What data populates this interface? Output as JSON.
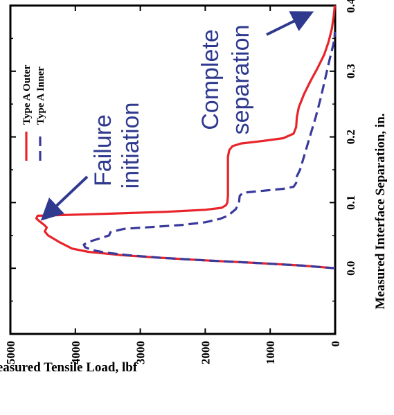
{
  "chart_data": {
    "type": "line",
    "orientation": "rotated-90-clockwise",
    "xlabel": "Measured Interface Separation, in.",
    "ylabel": "Measured Tensile Load, lbf",
    "xlim": [
      -0.1,
      0.4
    ],
    "ylim": [
      0,
      5000
    ],
    "x_ticks": [
      "0.0",
      "0.1",
      "0.2",
      "0.3",
      "0.4"
    ],
    "y_ticks": [
      "0",
      "1000",
      "2000",
      "3000",
      "4000",
      "5000"
    ],
    "x_tick_values": [
      0.0,
      0.1,
      0.2,
      0.3,
      0.4
    ],
    "y_tick_values": [
      0,
      1000,
      2000,
      3000,
      4000,
      5000
    ],
    "grid": false,
    "legend_position": "top-left",
    "series": [
      {
        "name": "Type A Outer",
        "color": "#e8242a",
        "style": "solid",
        "points": [
          [
            0.0,
            0
          ],
          [
            0.004,
            500
          ],
          [
            0.008,
            1200
          ],
          [
            0.012,
            2000
          ],
          [
            0.016,
            2700
          ],
          [
            0.02,
            3300
          ],
          [
            0.025,
            3800
          ],
          [
            0.03,
            4050
          ],
          [
            0.04,
            4250
          ],
          [
            0.05,
            4420
          ],
          [
            0.056,
            4470
          ],
          [
            0.062,
            4440
          ],
          [
            0.066,
            4480
          ],
          [
            0.072,
            4560
          ],
          [
            0.076,
            4600
          ],
          [
            0.08,
            4580
          ],
          [
            0.083,
            3500
          ],
          [
            0.086,
            2600
          ],
          [
            0.089,
            2000
          ],
          [
            0.092,
            1750
          ],
          [
            0.096,
            1680
          ],
          [
            0.1,
            1660
          ],
          [
            0.11,
            1650
          ],
          [
            0.125,
            1650
          ],
          [
            0.14,
            1650
          ],
          [
            0.155,
            1650
          ],
          [
            0.17,
            1650
          ],
          [
            0.18,
            1630
          ],
          [
            0.186,
            1580
          ],
          [
            0.19,
            1450
          ],
          [
            0.194,
            1100
          ],
          [
            0.198,
            800
          ],
          [
            0.205,
            640
          ],
          [
            0.215,
            600
          ],
          [
            0.23,
            590
          ],
          [
            0.245,
            560
          ],
          [
            0.265,
            480
          ],
          [
            0.285,
            380
          ],
          [
            0.305,
            270
          ],
          [
            0.325,
            170
          ],
          [
            0.345,
            100
          ],
          [
            0.365,
            50
          ],
          [
            0.385,
            20
          ],
          [
            0.4,
            5
          ]
        ]
      },
      {
        "name": "Type A Inner",
        "color": "#3a3a9c",
        "style": "dashed",
        "points": [
          [
            0.0,
            0
          ],
          [
            0.004,
            500
          ],
          [
            0.008,
            1200
          ],
          [
            0.012,
            2000
          ],
          [
            0.016,
            2700
          ],
          [
            0.02,
            3200
          ],
          [
            0.024,
            3550
          ],
          [
            0.028,
            3750
          ],
          [
            0.032,
            3850
          ],
          [
            0.036,
            3870
          ],
          [
            0.04,
            3800
          ],
          [
            0.05,
            3480
          ],
          [
            0.055,
            3460
          ],
          [
            0.06,
            3250
          ],
          [
            0.063,
            2800
          ],
          [
            0.066,
            2350
          ],
          [
            0.07,
            2000
          ],
          [
            0.075,
            1780
          ],
          [
            0.08,
            1650
          ],
          [
            0.09,
            1530
          ],
          [
            0.1,
            1480
          ],
          [
            0.11,
            1470
          ],
          [
            0.115,
            1420
          ],
          [
            0.118,
            1100
          ],
          [
            0.121,
            800
          ],
          [
            0.124,
            640
          ],
          [
            0.13,
            600
          ],
          [
            0.14,
            590
          ],
          [
            0.15,
            540
          ],
          [
            0.17,
            480
          ],
          [
            0.2,
            390
          ],
          [
            0.23,
            300
          ],
          [
            0.26,
            220
          ],
          [
            0.29,
            150
          ],
          [
            0.32,
            80
          ],
          [
            0.34,
            30
          ],
          [
            0.35,
            10
          ],
          [
            0.36,
            5
          ]
        ]
      }
    ],
    "annotations": [
      {
        "text_lines": [
          "Failure",
          "initiation"
        ],
        "arrow_to": [
          0.076,
          4600
        ]
      },
      {
        "text_lines": [
          "Complete",
          "separation"
        ],
        "arrow_to": [
          0.4,
          0
        ]
      }
    ]
  }
}
